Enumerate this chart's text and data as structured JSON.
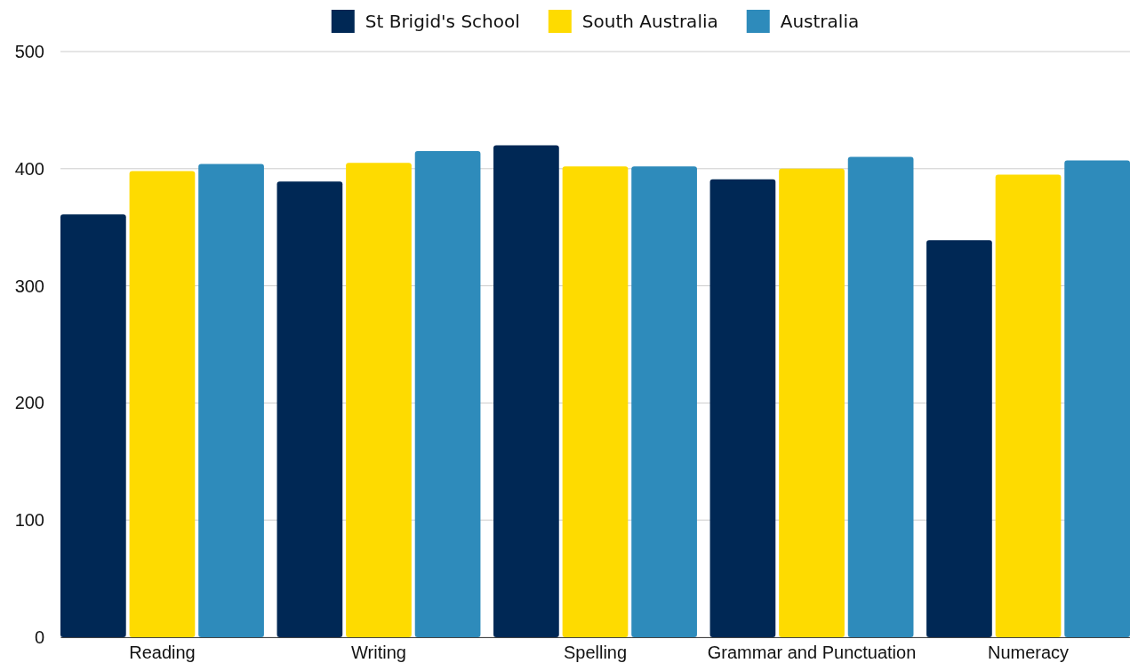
{
  "chart_data": {
    "type": "bar",
    "categories": [
      "Reading",
      "Writing",
      "Spelling",
      "Grammar and Punctuation",
      "Numeracy"
    ],
    "series": [
      {
        "name": "St Brigid's School",
        "color": "#002855",
        "values": [
          361,
          389,
          420,
          391,
          339
        ]
      },
      {
        "name": "South Australia",
        "color": "#fedb00",
        "values": [
          398,
          405,
          402,
          400,
          395
        ]
      },
      {
        "name": "Australia",
        "color": "#2e8bbb",
        "values": [
          404,
          415,
          402,
          410,
          407
        ]
      }
    ],
    "ylim": [
      0,
      500
    ],
    "yticks": [
      0,
      100,
      200,
      300,
      400,
      500
    ],
    "grid": "y",
    "legend": "top"
  }
}
